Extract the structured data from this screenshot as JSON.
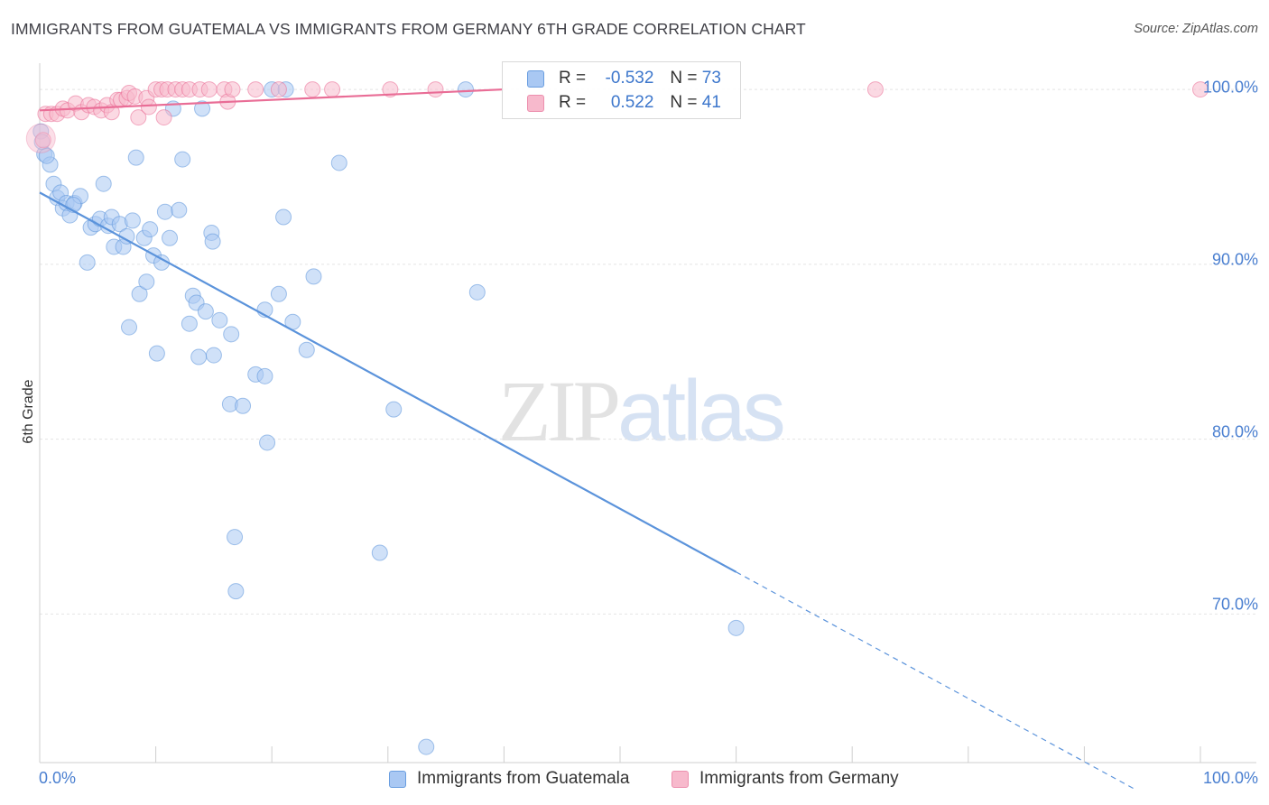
{
  "header": {
    "title": "IMMIGRANTS FROM GUATEMALA VS IMMIGRANTS FROM GERMANY 6TH GRADE CORRELATION CHART",
    "source": "Source: ZipAtlas.com"
  },
  "watermark": {
    "zip": "ZIP",
    "atlas": "atlas"
  },
  "legend": {
    "rows": [
      {
        "r_label": "R =",
        "r_value": "-0.532",
        "n_label": "N =",
        "n_value": "73",
        "color": "#a9c8f3"
      },
      {
        "r_label": "R =",
        "r_value": "0.522",
        "n_label": "N =",
        "n_value": "41",
        "color": "#f7b9cc"
      }
    ]
  },
  "bottom_legend": {
    "items": [
      {
        "label": "Immigrants from Guatemala",
        "color": "#a9c8f3"
      },
      {
        "label": "Immigrants from Germany",
        "color": "#f7b9cc"
      }
    ]
  },
  "chart_data": {
    "type": "scatter",
    "title": "IMMIGRANTS FROM GUATEMALA VS IMMIGRANTS FROM GERMANY 6TH GRADE CORRELATION CHART",
    "xlabel": "",
    "ylabel": "6th Grade",
    "xlim": [
      0,
      100
    ],
    "ylim": [
      61.5,
      101.5
    ],
    "x_tick_labels": [
      "0.0%",
      "100.0%"
    ],
    "y_ticks": [
      70,
      80,
      90,
      100
    ],
    "y_tick_labels": [
      "70.0%",
      "80.0%",
      "90.0%",
      "100.0%"
    ],
    "grid": true,
    "series": [
      {
        "name": "Immigrants from Guatemala",
        "color": "#5b93db",
        "fill": "#a9c8f3",
        "R": -0.532,
        "N": 73,
        "trend": {
          "x0": 0,
          "y0": 94.1,
          "x1": 60,
          "y1": 72.4,
          "dash_to_x": 94.5
        },
        "points": [
          [
            0.1,
            97.6
          ],
          [
            0.4,
            96.3
          ],
          [
            0.9,
            95.7
          ],
          [
            1.2,
            94.6
          ],
          [
            1.5,
            93.8
          ],
          [
            1.8,
            94.1
          ],
          [
            2.0,
            93.2
          ],
          [
            2.3,
            93.5
          ],
          [
            2.6,
            92.8
          ],
          [
            3.0,
            93.5
          ],
          [
            3.5,
            93.9
          ],
          [
            4.1,
            90.1
          ],
          [
            4.4,
            92.1
          ],
          [
            4.8,
            92.3
          ],
          [
            5.2,
            92.6
          ],
          [
            5.5,
            94.6
          ],
          [
            5.9,
            92.2
          ],
          [
            6.2,
            92.7
          ],
          [
            6.4,
            91.0
          ],
          [
            6.9,
            92.3
          ],
          [
            7.2,
            91.0
          ],
          [
            7.5,
            91.6
          ],
          [
            7.7,
            86.4
          ],
          [
            8.0,
            92.5
          ],
          [
            8.3,
            96.1
          ],
          [
            8.6,
            88.3
          ],
          [
            9.0,
            91.5
          ],
          [
            9.2,
            89.0
          ],
          [
            9.5,
            92.0
          ],
          [
            9.8,
            90.5
          ],
          [
            10.1,
            84.9
          ],
          [
            10.5,
            90.1
          ],
          [
            10.8,
            93.0
          ],
          [
            11.2,
            91.5
          ],
          [
            11.5,
            98.9
          ],
          [
            12.0,
            93.1
          ],
          [
            12.3,
            96.0
          ],
          [
            12.9,
            86.6
          ],
          [
            13.2,
            88.2
          ],
          [
            13.5,
            87.8
          ],
          [
            13.7,
            84.7
          ],
          [
            14.0,
            98.9
          ],
          [
            14.3,
            87.3
          ],
          [
            14.8,
            91.8
          ],
          [
            14.9,
            91.3
          ],
          [
            15.0,
            84.8
          ],
          [
            15.5,
            86.8
          ],
          [
            16.4,
            82.0
          ],
          [
            16.5,
            86.0
          ],
          [
            16.8,
            74.4
          ],
          [
            16.9,
            71.3
          ],
          [
            17.5,
            81.9
          ],
          [
            18.6,
            83.7
          ],
          [
            19.4,
            83.6
          ],
          [
            19.4,
            87.4
          ],
          [
            19.6,
            79.8
          ],
          [
            20.0,
            100.0
          ],
          [
            20.6,
            88.3
          ],
          [
            21.0,
            92.7
          ],
          [
            21.2,
            100.0
          ],
          [
            21.8,
            86.7
          ],
          [
            23.0,
            85.1
          ],
          [
            23.6,
            89.3
          ],
          [
            25.8,
            95.8
          ],
          [
            29.3,
            73.5
          ],
          [
            30.5,
            81.7
          ],
          [
            33.3,
            62.4
          ],
          [
            36.7,
            100.0
          ],
          [
            37.7,
            88.4
          ],
          [
            60.0,
            69.2
          ],
          [
            0.2,
            97.0
          ],
          [
            0.6,
            96.2
          ],
          [
            2.9,
            93.4
          ]
        ]
      },
      {
        "name": "Immigrants from Germany",
        "color": "#e96d96",
        "fill": "#f7b9cc",
        "R": 0.522,
        "N": 41,
        "trend": {
          "x0": 0,
          "y0": 98.8,
          "x1": 40,
          "y1": 100.0
        },
        "points": [
          [
            0.3,
            97.1
          ],
          [
            0.5,
            98.6
          ],
          [
            1.0,
            98.6
          ],
          [
            1.5,
            98.6
          ],
          [
            2.0,
            98.9
          ],
          [
            2.4,
            98.8
          ],
          [
            3.1,
            99.2
          ],
          [
            3.6,
            98.7
          ],
          [
            4.2,
            99.1
          ],
          [
            4.7,
            99.0
          ],
          [
            5.3,
            98.8
          ],
          [
            5.8,
            99.1
          ],
          [
            6.2,
            98.7
          ],
          [
            6.7,
            99.4
          ],
          [
            7.0,
            99.4
          ],
          [
            7.5,
            99.5
          ],
          [
            7.7,
            99.8
          ],
          [
            8.2,
            99.6
          ],
          [
            8.5,
            98.4
          ],
          [
            9.2,
            99.5
          ],
          [
            9.4,
            99.0
          ],
          [
            10.0,
            100.0
          ],
          [
            10.5,
            100.0
          ],
          [
            10.7,
            98.4
          ],
          [
            11.0,
            100.0
          ],
          [
            11.7,
            100.0
          ],
          [
            12.3,
            100.0
          ],
          [
            12.9,
            100.0
          ],
          [
            13.8,
            100.0
          ],
          [
            14.6,
            100.0
          ],
          [
            15.9,
            100.0
          ],
          [
            16.2,
            99.3
          ],
          [
            16.6,
            100.0
          ],
          [
            18.6,
            100.0
          ],
          [
            20.6,
            100.0
          ],
          [
            23.5,
            100.0
          ],
          [
            25.2,
            100.0
          ],
          [
            30.2,
            100.0
          ],
          [
            34.1,
            100.0
          ],
          [
            72.0,
            100.0
          ],
          [
            100.0,
            100.0
          ]
        ]
      }
    ]
  }
}
